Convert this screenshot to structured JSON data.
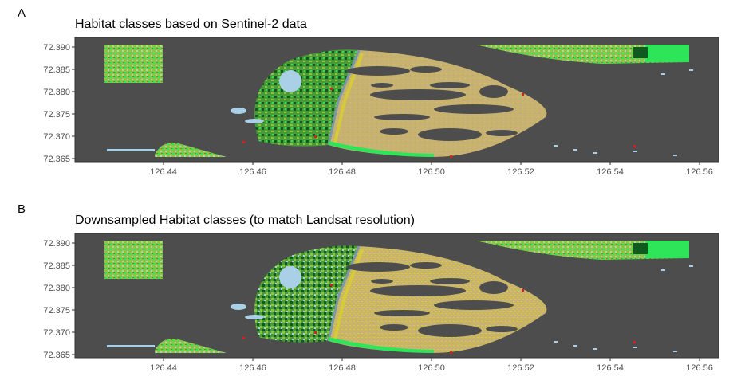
{
  "panels": [
    {
      "letter": "A",
      "title": "Habitat classes based on Sentinel-2 data",
      "y_ticks": [
        "72.390",
        "72.385",
        "72.380",
        "72.375",
        "72.370",
        "72.365"
      ],
      "x_ticks": [
        "126.44",
        "126.46",
        "126.48",
        "126.50",
        "126.52",
        "126.54",
        "126.56"
      ]
    },
    {
      "letter": "B",
      "title": "Downsampled Habitat classes (to match Landsat resolution)",
      "y_ticks": [
        "72.390",
        "72.385",
        "72.380",
        "72.375",
        "72.370",
        "72.365"
      ],
      "x_ticks": [
        "126.44",
        "126.46",
        "126.48",
        "126.50",
        "126.52",
        "126.54",
        "126.56"
      ]
    }
  ],
  "colors": {
    "background_water": "#4d4d4d",
    "sand": "#c8b273",
    "yellow_veg": "#d8d02a",
    "light_green": "#8cc63f",
    "bright_green": "#2ee55a",
    "dark_green": "#0f5a1e",
    "mid_green": "#4a9a3a",
    "light_blue": "#a9d0e6",
    "steel_blue": "#7a98a8",
    "red": "#e31a1c"
  }
}
